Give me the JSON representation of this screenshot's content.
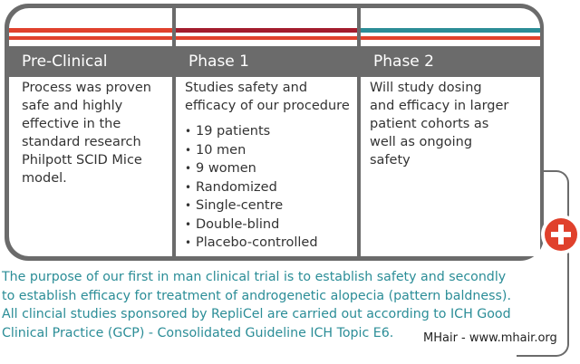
{
  "colors": {
    "frame": "#6b6b6b",
    "stripe_red": "#e0412c",
    "stripe_darkred": "#a31c2c",
    "stripe_teal": "#2b8d97",
    "footer_text": "#2b8d97"
  },
  "columns": [
    {
      "header": "Pre-Clinical",
      "body_lines": [
        "Process was proven",
        "safe and highly",
        "effective in the",
        "standard research",
        "Philpott SCID Mice",
        "model."
      ],
      "bullets": []
    },
    {
      "header": "Phase 1",
      "body_lines": [
        "Studies safety and",
        "efficacy of our procedure"
      ],
      "bullets": [
        "19 patients",
        "10 men",
        "9 women",
        "Randomized",
        "Single-centre",
        "Double-blind",
        "Placebo-controlled"
      ]
    },
    {
      "header": "Phase 2",
      "body_lines": [
        "Will study dosing",
        "and efficacy in larger",
        "patient cohorts as",
        "well as  ongoing",
        "safety"
      ],
      "bullets": []
    }
  ],
  "footer_lines": [
    "The purpose of our first in man clinical trial is to establish safety and secondly",
    "to establish efficacy for treatment of androgenetic alopecia (pattern baldness).",
    "All clincial studies sponsored by RepliCel are carried out according to ICH Good",
    "Clinical Practice (GCP) - Consolidated Guideline ICH Topic E6."
  ],
  "watermark": "MHair - www.mhair.org",
  "icons": {
    "medical": "medical-cross-icon"
  }
}
